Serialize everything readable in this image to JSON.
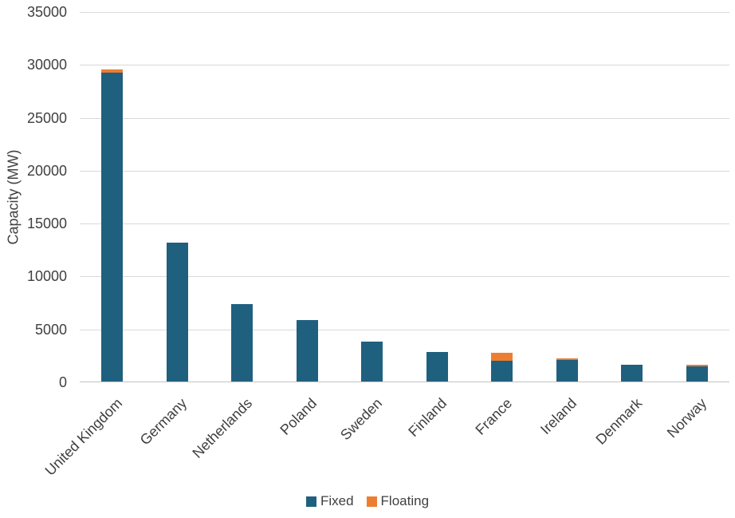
{
  "chart_data": {
    "type": "bar",
    "stacked": true,
    "title": "",
    "xlabel": "",
    "ylabel": "Capacity (MW)",
    "ylim": [
      0,
      35000
    ],
    "yticks": [
      0,
      5000,
      10000,
      15000,
      20000,
      25000,
      30000,
      35000
    ],
    "grid": true,
    "legend_position": "bottom-center",
    "categories": [
      "United Kingdom",
      "Germany",
      "Netherlands",
      "Poland",
      "Sweden",
      "Finland",
      "France",
      "Ireland",
      "Denmark",
      "Norway"
    ],
    "series": [
      {
        "name": "Fixed",
        "color": "#20607f",
        "values": [
          29200,
          13100,
          7300,
          5800,
          3750,
          2800,
          2000,
          2050,
          1600,
          1430
        ]
      },
      {
        "name": "Floating",
        "color": "#ed7d31",
        "values": [
          300,
          0,
          0,
          0,
          0,
          0,
          750,
          150,
          0,
          170
        ]
      }
    ]
  },
  "colors": {
    "fixed": "#20607f",
    "floating": "#ed7d31",
    "gridline": "#d9d9d9",
    "axis_line": "#c3c3c3",
    "text": "#404040",
    "background": "#ffffff"
  }
}
